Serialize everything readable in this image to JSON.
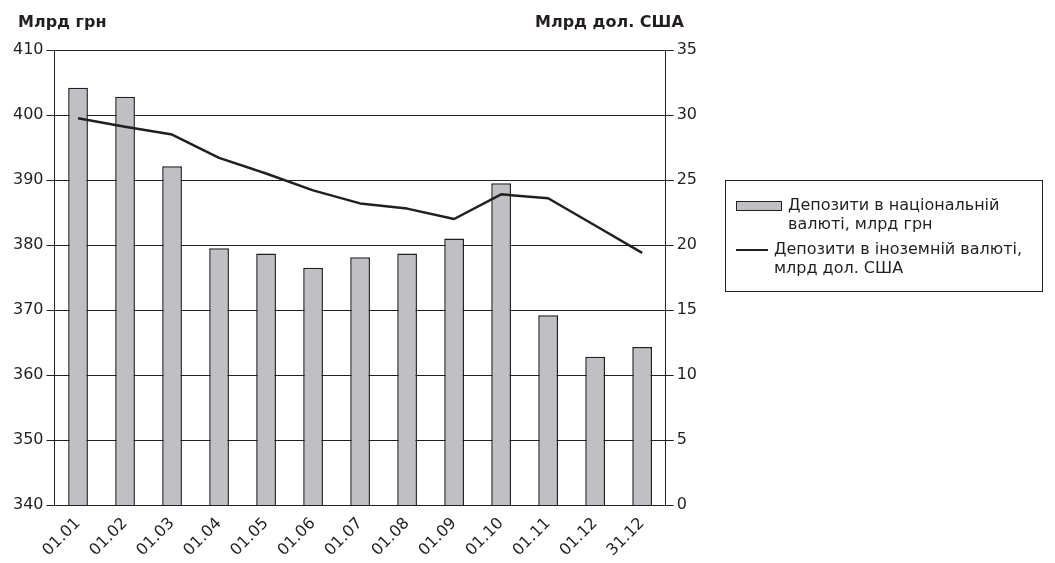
{
  "chart_data": {
    "type": "bar",
    "ylabel": "Млрд грн",
    "y2label": "Млрд дол. США",
    "categories": [
      "01.01",
      "01.02",
      "01.03",
      "01.04",
      "01.05",
      "01.06",
      "01.07",
      "01.08",
      "01.09",
      "01.10",
      "01.11",
      "01.12",
      "31.12"
    ],
    "series": [
      {
        "name": "Депозити в національній валюті, млрд грн",
        "color": "#c0c0c4",
        "values": [
          404.2,
          402.8,
          392.1,
          379.5,
          378.7,
          376.5,
          378.1,
          378.7,
          381.0,
          389.5,
          369.2,
          362.8,
          364.3
        ]
      },
      {
        "name": "Депозити в іноземній валюті, млрд дол. США",
        "type": "line",
        "axis": "y2",
        "color": "#231f20",
        "values": [
          29.75,
          29.1,
          28.5,
          26.7,
          25.5,
          24.2,
          23.2,
          22.8,
          22.0,
          23.9,
          23.6,
          21.5,
          19.4
        ]
      }
    ],
    "ylim": [
      340,
      410
    ],
    "yticks": [
      340,
      350,
      360,
      370,
      380,
      390,
      400,
      410
    ],
    "y2lim": [
      0,
      35
    ],
    "y2ticks": [
      0,
      5,
      10,
      15,
      20,
      25,
      30,
      35
    ],
    "grid": "y",
    "legend": "right",
    "marker": "none"
  }
}
